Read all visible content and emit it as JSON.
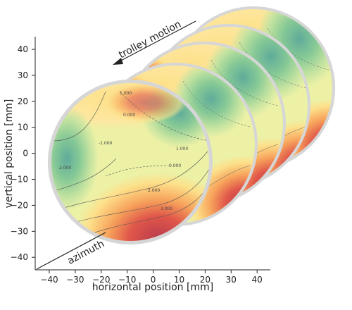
{
  "axes": {
    "y_label": "vertical position [mm]",
    "x_label": "horizontal position [mm]",
    "y_ticks": [
      "40",
      "30",
      "20",
      "10",
      "0",
      "−10",
      "−20",
      "−30",
      "−40"
    ],
    "x_ticks": [
      "−40",
      "−30",
      "−20",
      "−10",
      "0",
      "10",
      "20",
      "30",
      "40"
    ]
  },
  "annotations": {
    "trolley_motion": "trolley motion",
    "azimuth": "azimuth"
  },
  "contour_labels": [
    "1.000",
    "0.000",
    "-1.000",
    "2.000",
    "3.000",
    "-2.000",
    "1.000",
    "0.000"
  ],
  "colors": {
    "ring": "#d6d6d6",
    "center": "#ecf1a6",
    "warm_light": "#fde08a",
    "warm": "#f7a45c",
    "warm_dark": "#e0574a",
    "hot": "#b83a4d",
    "cool_light": "#c4e3a0",
    "cool": "#86c996",
    "cool_dark": "#5fab9a"
  }
}
